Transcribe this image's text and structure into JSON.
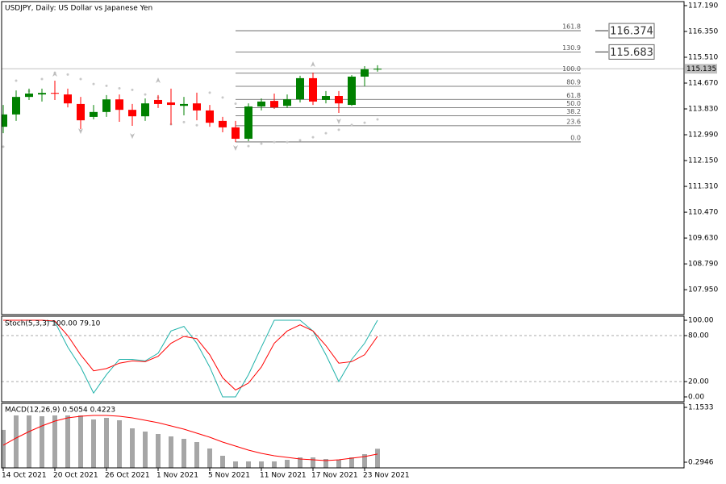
{
  "chart_data": [
    {
      "type": "candlestick",
      "title": "USDJPY, Daily:  US Dollar vs Japanese Yen",
      "categories": [
        "14 Oct 2021",
        null,
        null,
        null,
        "20 Oct 2021",
        null,
        null,
        null,
        "26 Oct 2021",
        null,
        null,
        null,
        "1 Nov 2021",
        null,
        null,
        null,
        "5 Nov 2021",
        null,
        null,
        null,
        "11 Nov 2021",
        null,
        null,
        null,
        "17 Nov 2021",
        null,
        null,
        null,
        "23 Nov 2021",
        null
      ],
      "open": [
        113.25,
        113.65,
        114.22,
        114.3,
        114.35,
        114.3,
        113.99,
        113.57,
        113.73,
        114.14,
        113.8,
        113.59,
        114.12,
        114.04,
        113.93,
        114.01,
        113.78,
        113.44,
        113.23,
        112.86,
        113.91,
        114.09,
        113.93,
        114.14,
        114.83,
        114.12,
        114.25,
        113.96,
        114.88,
        115.12
      ],
      "high": [
        113.96,
        114.43,
        114.49,
        114.49,
        114.75,
        114.49,
        114.22,
        113.96,
        114.28,
        114.3,
        113.99,
        114.17,
        114.28,
        114.49,
        114.22,
        114.36,
        113.96,
        113.57,
        113.44,
        114.01,
        114.17,
        114.33,
        114.3,
        114.91,
        115.01,
        114.41,
        114.41,
        114.93,
        115.22,
        115.25
      ],
      "low": [
        113.04,
        113.44,
        114.12,
        114.07,
        114.12,
        113.88,
        113.17,
        113.49,
        113.57,
        113.41,
        113.28,
        113.44,
        113.86,
        113.31,
        113.62,
        113.46,
        113.25,
        113.07,
        112.75,
        112.78,
        113.78,
        113.83,
        113.86,
        114.04,
        113.96,
        114.01,
        113.7,
        113.93,
        114.57,
        115.04
      ],
      "close": [
        113.65,
        114.22,
        114.33,
        114.35,
        114.33,
        114.01,
        113.46,
        113.73,
        114.14,
        113.8,
        113.59,
        114.01,
        113.99,
        113.96,
        113.99,
        113.78,
        113.38,
        113.23,
        112.86,
        113.91,
        114.07,
        113.88,
        114.14,
        114.83,
        114.07,
        114.25,
        114.01,
        114.88,
        115.12,
        115.135
      ],
      "up_color": "#008000",
      "down_color": "#ff0000",
      "ylim": [
        107.14,
        117.32
      ],
      "yticks": [
        {
          "value": 117.19,
          "label": "117.190"
        },
        {
          "value": 116.35,
          "label": "116.350"
        },
        {
          "value": 115.51,
          "label": "115.510"
        },
        {
          "value": 114.67,
          "label": "114.670"
        },
        {
          "value": 113.83,
          "label": "113.830"
        },
        {
          "value": 112.99,
          "label": "112.990"
        },
        {
          "value": 112.15,
          "label": "112.150"
        },
        {
          "value": 111.31,
          "label": "111.310"
        },
        {
          "value": 110.47,
          "label": "110.470"
        },
        {
          "value": 109.63,
          "label": "109.630"
        },
        {
          "value": 108.79,
          "label": "108.790"
        },
        {
          "value": 107.95,
          "label": "107.950"
        }
      ],
      "current_price": 115.135,
      "price_levels": [
        116.374,
        115.683
      ],
      "fibonacci": {
        "low": 112.756,
        "high": 114.992,
        "levels": [
          161.8,
          130.9,
          {
            "value": 100,
            "label": "100.0"
          },
          80.9,
          61.8,
          {
            "value": 50,
            "label": "50.0"
          },
          38.2,
          23.6,
          {
            "value": 0,
            "label": "0.0"
          }
        ]
      },
      "sar": [
        112.6,
        114.75,
        114.41,
        114.8,
        115.0,
        114.95,
        114.8,
        114.64,
        114.58,
        114.5,
        114.45,
        114.3,
        114.2,
        113.33,
        113.4,
        113.3,
        114.36,
        114.2,
        114.0,
        112.62,
        112.7,
        112.75,
        112.75,
        112.81,
        112.91,
        113.04,
        113.15,
        113.31,
        113.38,
        113.49
      ],
      "fractals_up": [
        null,
        null,
        null,
        null,
        114.96,
        null,
        null,
        null,
        null,
        null,
        null,
        null,
        114.75,
        null,
        null,
        null,
        null,
        null,
        null,
        null,
        null,
        null,
        null,
        null,
        115.27,
        null,
        null,
        null,
        null,
        null
      ],
      "fractals_down": [
        null,
        null,
        null,
        null,
        null,
        null,
        113.12,
        null,
        null,
        null,
        112.96,
        null,
        null,
        null,
        null,
        null,
        null,
        null,
        112.57,
        null,
        null,
        null,
        null,
        null,
        null,
        null,
        113.44,
        null,
        null,
        null
      ]
    },
    {
      "type": "line",
      "title": "Stoch(5,3,3) 100.00 79.10",
      "series": [
        {
          "color": "#20b2aa",
          "values": [
            100,
            100,
            100,
            100,
            98,
            65,
            39,
            5,
            29,
            49,
            49,
            47,
            57,
            86,
            92,
            70,
            39,
            0,
            0,
            29,
            65,
            100,
            100,
            100,
            86,
            55,
            20,
            49,
            70,
            100
          ]
        },
        {
          "color": "#ff0000",
          "values": [
            100,
            100,
            100,
            100,
            99,
            80,
            55,
            34,
            37,
            44,
            47,
            46,
            53,
            70,
            79,
            76,
            55,
            25,
            9,
            18,
            39,
            70,
            86,
            94,
            86,
            67,
            44,
            46,
            55,
            79.1
          ]
        }
      ],
      "ylim": [
        -6.3,
        105.3
      ],
      "yticks": [
        {
          "value": 100,
          "label": "100.00"
        },
        {
          "value": 80,
          "label": "80.00"
        },
        {
          "value": 20,
          "label": "20.00"
        },
        {
          "value": 0,
          "label": "0.00"
        }
      ],
      "dashed_levels": [
        80,
        20
      ]
    },
    {
      "type": "bar",
      "title": "MACD(12,26,9) 0.5054 0.4223",
      "values": [
        0.8007,
        1.0269,
        1.0269,
        1.0143,
        1.0269,
        1.0269,
        1.0269,
        0.9638,
        0.989,
        0.9512,
        0.8249,
        0.7744,
        0.7365,
        0.6986,
        0.6608,
        0.6103,
        0.5092,
        0.3956,
        0.3072,
        0.3072,
        0.3072,
        0.3072,
        0.3325,
        0.3703,
        0.3703,
        0.3451,
        0.3325,
        0.3703,
        0.4209,
        0.5054
      ],
      "color": "#a6a6a6",
      "series": [
        {
          "color": "#ff0000",
          "values": [
            0.5598,
            0.6734,
            0.7744,
            0.8628,
            0.9385,
            0.989,
            1.0143,
            1.0269,
            1.0269,
            1.0143,
            0.989,
            0.9512,
            0.9133,
            0.8628,
            0.8123,
            0.7491,
            0.686,
            0.6103,
            0.5471,
            0.484,
            0.4335,
            0.3956,
            0.3704,
            0.3451,
            0.3325,
            0.3199,
            0.3325,
            0.3577,
            0.383,
            0.4223
          ]
        }
      ],
      "ylim": [
        0.2062,
        1.2164
      ],
      "yticks": [
        1.1533,
        0.2946
      ]
    }
  ]
}
